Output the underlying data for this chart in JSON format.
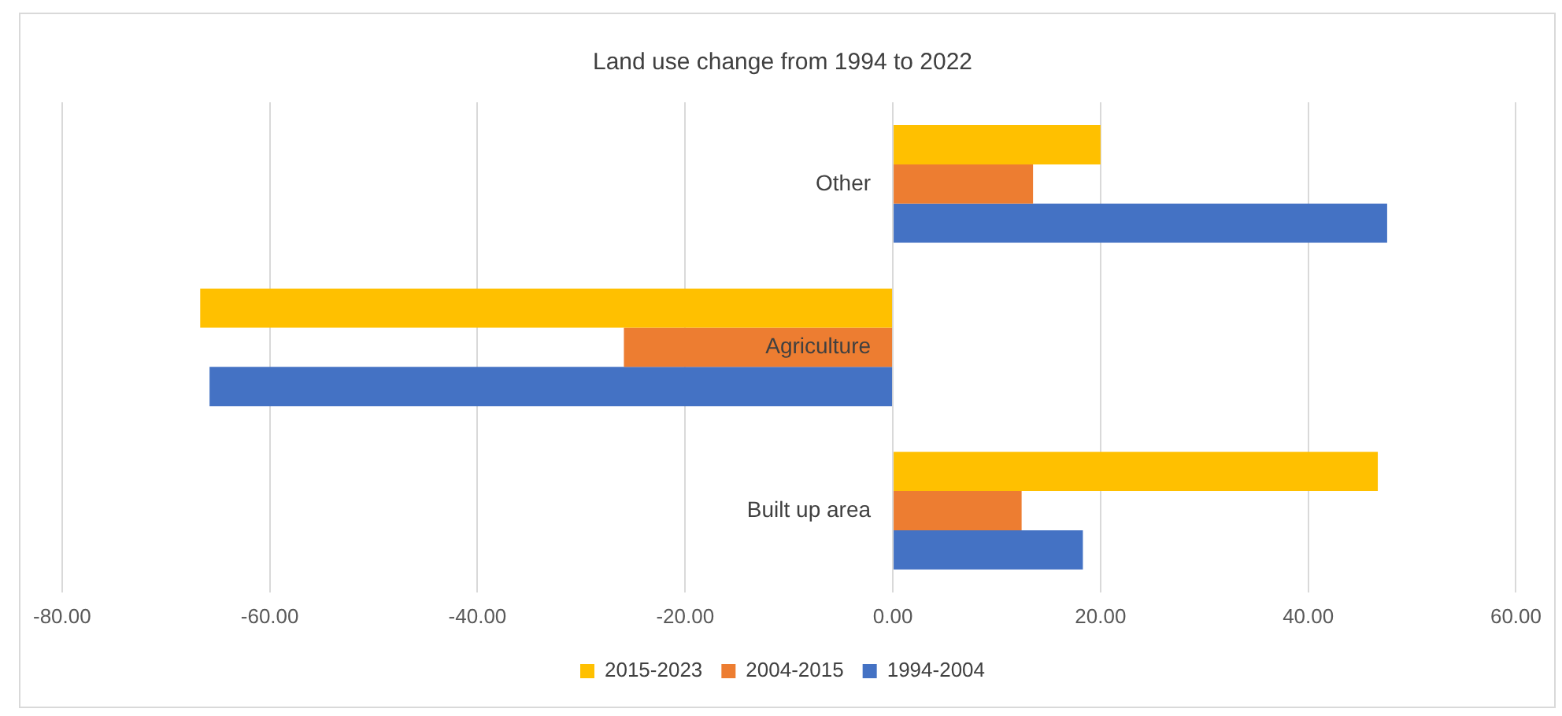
{
  "chart_data": {
    "type": "bar",
    "orientation": "horizontal",
    "title": "Land use change from 1994 to 2022",
    "categories": [
      "Other",
      "Agriculture",
      "Built up area"
    ],
    "series": [
      {
        "name": "2015-2023",
        "color": "#ffc000",
        "values": [
          20.0,
          -66.7,
          46.7
        ]
      },
      {
        "name": "2004-2015",
        "color": "#ed7d31",
        "values": [
          13.5,
          -25.9,
          12.4
        ]
      },
      {
        "name": "1994-2004",
        "color": "#4472c4",
        "values": [
          47.6,
          -65.8,
          18.3
        ]
      }
    ],
    "xlim": [
      -80,
      60
    ],
    "xticks": [
      {
        "value": -80,
        "label": "-80.00"
      },
      {
        "value": -60,
        "label": "-60.00"
      },
      {
        "value": -40,
        "label": "-40.00"
      },
      {
        "value": -20,
        "label": "-20.00"
      },
      {
        "value": 0,
        "label": "0.00"
      },
      {
        "value": 20,
        "label": "20.00"
      },
      {
        "value": 40,
        "label": "40.00"
      },
      {
        "value": 60,
        "label": "60.00"
      }
    ],
    "grid": "x",
    "legend": "bottom"
  }
}
